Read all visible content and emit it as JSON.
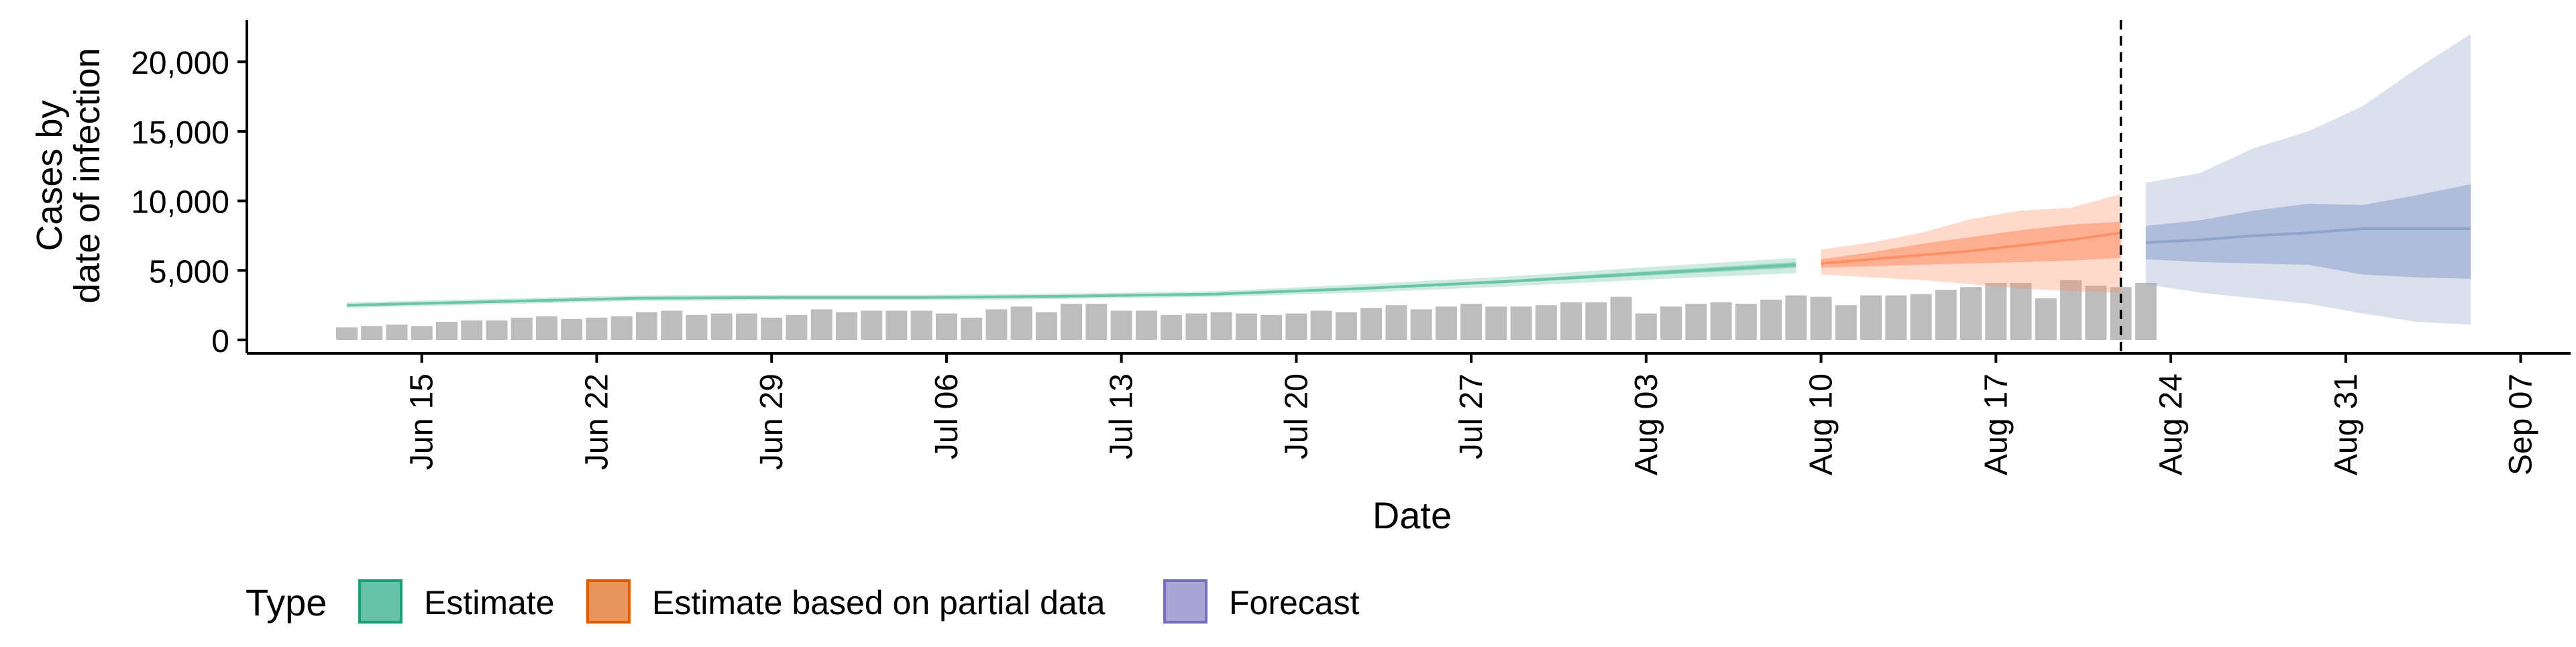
{
  "chart_data": {
    "type": "bar+ribbon",
    "xlabel": "Date",
    "ylabel_lines": [
      "Cases by",
      "date of infection"
    ],
    "ylim": [
      0,
      23000
    ],
    "xlim": [
      "2020-06-08",
      "2020-09-09"
    ],
    "y_ticks": [
      {
        "value": 0,
        "label": "0"
      },
      {
        "value": 5000,
        "label": "5,000"
      },
      {
        "value": 10000,
        "label": "10,000"
      },
      {
        "value": 15000,
        "label": "15,000"
      },
      {
        "value": 20000,
        "label": "20,000"
      }
    ],
    "x_ticks": [
      {
        "date": "2020-06-15",
        "label": "Jun 15"
      },
      {
        "date": "2020-06-22",
        "label": "Jun 22"
      },
      {
        "date": "2020-06-29",
        "label": "Jun 29"
      },
      {
        "date": "2020-07-06",
        "label": "Jul 06"
      },
      {
        "date": "2020-07-13",
        "label": "Jul 13"
      },
      {
        "date": "2020-07-20",
        "label": "Jul 20"
      },
      {
        "date": "2020-07-27",
        "label": "Jul 27"
      },
      {
        "date": "2020-08-03",
        "label": "Aug 03"
      },
      {
        "date": "2020-08-10",
        "label": "Aug 10"
      },
      {
        "date": "2020-08-17",
        "label": "Aug 17"
      },
      {
        "date": "2020-08-24",
        "label": "Aug 24"
      },
      {
        "date": "2020-08-31",
        "label": "Aug 31"
      },
      {
        "date": "2020-09-07",
        "label": "Sep 07"
      }
    ],
    "vline_date": "2020-08-22",
    "bars": {
      "start_date": "2020-06-12",
      "color": "#bdbdbd",
      "values": [
        900,
        1000,
        1100,
        1000,
        1300,
        1400,
        1400,
        1600,
        1700,
        1500,
        1600,
        1700,
        2000,
        2100,
        1800,
        1900,
        1900,
        1600,
        1800,
        2200,
        2000,
        2100,
        2100,
        2100,
        1900,
        1600,
        2200,
        2400,
        2000,
        2600,
        2600,
        2100,
        2100,
        1800,
        1900,
        2000,
        1900,
        1800,
        1900,
        2100,
        2000,
        2300,
        2500,
        2200,
        2400,
        2600,
        2400,
        2400,
        2500,
        2700,
        2700,
        3100,
        1900,
        2400,
        2600,
        2700,
        2600,
        2900,
        3200,
        3100,
        2500,
        3200,
        3200,
        3300,
        3600,
        3800,
        4100,
        4100,
        3000,
        4300,
        3900,
        3800,
        4100
      ]
    },
    "ribbons": [
      {
        "type": "Estimate",
        "start_date": "2020-06-12",
        "end_date": "2020-08-09",
        "color": "#66c2a5",
        "median": [
          2500,
          2750,
          3000,
          3050,
          3050,
          3150,
          3300,
          3700,
          4200,
          4800,
          5400
        ],
        "inner_lower": [
          2450,
          2700,
          2950,
          3000,
          3000,
          3100,
          3250,
          3600,
          4100,
          4650,
          5200
        ],
        "inner_upper": [
          2550,
          2800,
          3050,
          3100,
          3100,
          3200,
          3350,
          3800,
          4300,
          4950,
          5600
        ],
        "outer_lower": [
          2300,
          2550,
          2800,
          2850,
          2850,
          2950,
          3100,
          3400,
          3850,
          4350,
          4800
        ],
        "outer_upper": [
          2700,
          2950,
          3200,
          3250,
          3250,
          3350,
          3500,
          4000,
          4550,
          5250,
          5900
        ]
      },
      {
        "type": "Estimate based on partial data",
        "start_date": "2020-08-10",
        "end_date": "2020-08-22",
        "color": "#fc8d62",
        "median": [
          5500,
          5800,
          6100,
          6400,
          6800,
          7200,
          7700
        ],
        "inner_lower": [
          5200,
          5300,
          5400,
          5500,
          5600,
          5700,
          5900
        ],
        "inner_upper": [
          5800,
          6300,
          6900,
          7400,
          7900,
          8300,
          8500
        ],
        "outer_lower": [
          4700,
          4500,
          4300,
          4000,
          3700,
          3500,
          3400
        ],
        "outer_upper": [
          6500,
          7000,
          7700,
          8700,
          9300,
          9500,
          10500
        ]
      },
      {
        "type": "Forecast",
        "start_date": "2020-08-23",
        "end_date": "2020-09-05",
        "color": "#8da0cb",
        "median": [
          7000,
          7200,
          7500,
          7700,
          8000,
          8000,
          8000
        ],
        "inner_lower": [
          5800,
          5600,
          5500,
          5400,
          4700,
          4500,
          4400
        ],
        "inner_upper": [
          8200,
          8600,
          9300,
          9800,
          9700,
          10400,
          11200
        ],
        "outer_lower": [
          4000,
          3400,
          3000,
          2600,
          1900,
          1300,
          1100
        ],
        "outer_upper": [
          11300,
          12000,
          13800,
          15000,
          16800,
          19500,
          22000
        ]
      }
    ],
    "legend": {
      "title": "Type",
      "position": "bottom",
      "items": [
        {
          "label": "Estimate",
          "fill": "#66c2a5",
          "stroke": "#1b9e77"
        },
        {
          "label": "Estimate based on partial data",
          "fill": "#e8955e",
          "stroke": "#d95f02"
        },
        {
          "label": "Forecast",
          "fill": "#a9a6d5",
          "stroke": "#7570b3"
        }
      ]
    }
  }
}
